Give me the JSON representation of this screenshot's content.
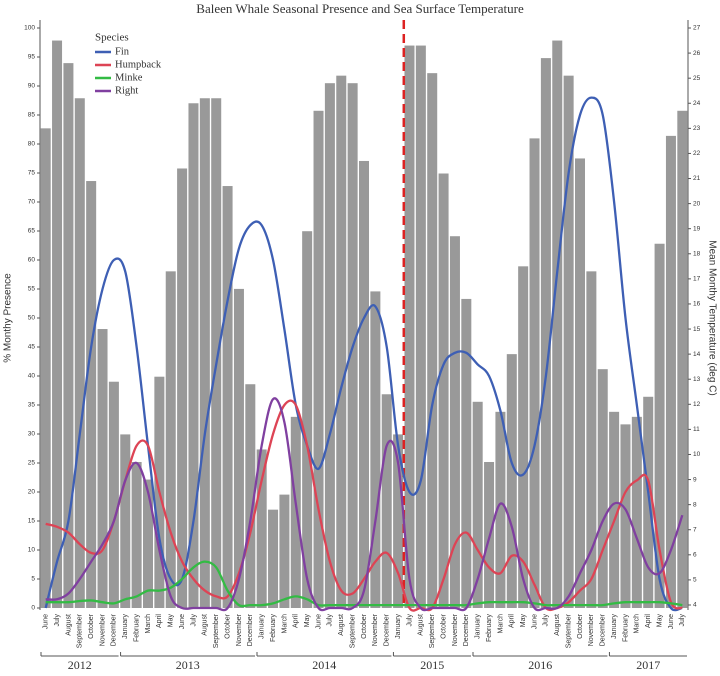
{
  "chart_data": {
    "type": "bar_line",
    "title": "Baleen Whale Seasonal Presence and Sea Surface Temperature",
    "y_label": "% Monthy Presence",
    "y2_label": "Mean Monthy Temperature (deg C)",
    "legend_title": "Species",
    "legend": "top-left",
    "categories": [
      "June",
      "July",
      "August",
      "September",
      "October",
      "November",
      "December",
      "January",
      "February",
      "March",
      "April",
      "May",
      "June",
      "July",
      "August",
      "September",
      "October",
      "November",
      "December",
      "January",
      "February",
      "March",
      "April",
      "May",
      "June",
      "July",
      "August",
      "September",
      "October",
      "November",
      "December",
      "January",
      "July",
      "August",
      "September",
      "October",
      "November",
      "December",
      "January",
      "February",
      "March",
      "April",
      "May",
      "June",
      "July",
      "August",
      "September",
      "October",
      "November",
      "December",
      "January",
      "February",
      "March",
      "April",
      "May",
      "June",
      "July"
    ],
    "year_groups": [
      {
        "label": "2012",
        "count": 7
      },
      {
        "label": "2013",
        "count": 12
      },
      {
        "label": "2014",
        "count": 12
      },
      {
        "label": "2015",
        "count": 7
      },
      {
        "label": "2016",
        "count": 12
      },
      {
        "label": "2017",
        "count": 7
      }
    ],
    "bars": {
      "color": "#999999",
      "axis": "y2",
      "values": [
        23.0,
        26.5,
        25.6,
        24.2,
        20.9,
        15.0,
        12.9,
        10.8,
        9.7,
        9.0,
        13.1,
        17.3,
        21.4,
        24.0,
        24.2,
        24.2,
        20.7,
        16.6,
        12.8,
        10.2,
        7.8,
        8.4,
        11.5,
        18.9,
        23.7,
        24.8,
        25.1,
        24.8,
        21.7,
        16.5,
        12.4,
        10.8,
        26.3,
        26.3,
        25.2,
        21.2,
        18.7,
        16.2,
        12.1,
        9.7,
        11.7,
        14.0,
        17.5,
        22.6,
        25.8,
        26.5,
        25.1,
        21.8,
        17.3,
        13.4,
        11.7,
        11.2,
        11.5,
        12.3,
        18.4,
        22.7,
        23.7
      ]
    },
    "series": [
      {
        "name": "Fin",
        "color": "#3e5fb4",
        "values": [
          0,
          8,
          15,
          30,
          45,
          55,
          60,
          58,
          45,
          28,
          12,
          5,
          5,
          15,
          30,
          42,
          53,
          62,
          66,
          66,
          60,
          48,
          35,
          28,
          24,
          30,
          38,
          45,
          50,
          52,
          45,
          28,
          20,
          22,
          35,
          42,
          44,
          44,
          42,
          40,
          34,
          25,
          23,
          28,
          40,
          58,
          75,
          85,
          88,
          85,
          70,
          50,
          35,
          20,
          5,
          0,
          0
        ]
      },
      {
        "name": "Humpback",
        "color": "#dd4455",
        "values": [
          14.5,
          14,
          13,
          11,
          9.5,
          10,
          15,
          22,
          28,
          28,
          20,
          13,
          8,
          5,
          3,
          2,
          2,
          6,
          13,
          22,
          30,
          35,
          35,
          28,
          17,
          8,
          3,
          2.5,
          5,
          8,
          9.5,
          6,
          0,
          0,
          0,
          5,
          11,
          13,
          10,
          7,
          6,
          9,
          8,
          4,
          0,
          0,
          1,
          3,
          5,
          10,
          15,
          20,
          22,
          22,
          10,
          1,
          0
        ]
      },
      {
        "name": "Minke",
        "color": "#33bb44",
        "values": [
          1,
          1,
          1,
          1.2,
          1.3,
          1,
          0.8,
          1.5,
          2,
          3,
          3,
          3.5,
          5,
          7,
          8,
          7,
          3,
          0.5,
          0.5,
          0.5,
          0.8,
          1.5,
          2,
          1.5,
          0.5,
          0.5,
          0.5,
          0.5,
          0.5,
          0.5,
          0.5,
          0.5,
          0.5,
          0.5,
          0.5,
          0.5,
          0.5,
          0.5,
          0.8,
          1,
          1,
          1,
          1,
          0.8,
          0.5,
          0.5,
          0.5,
          0.5,
          0.5,
          0.5,
          0.8,
          1,
          1,
          1,
          1,
          0.8,
          0.5
        ]
      },
      {
        "name": "Right",
        "color": "#8040a0",
        "values": [
          1.5,
          1.5,
          2.5,
          5,
          8,
          11,
          15,
          22,
          25,
          20,
          10,
          2,
          0,
          0,
          0,
          0,
          0,
          5,
          15,
          28,
          36,
          32,
          18,
          5,
          0,
          0,
          0,
          0,
          3,
          15,
          28,
          25,
          5,
          0,
          0,
          0,
          0,
          0,
          5,
          12,
          18,
          14,
          5,
          0,
          0,
          0,
          2,
          6,
          10,
          15,
          18,
          17,
          12,
          7,
          6,
          10,
          16
        ]
      }
    ],
    "ylim": [
      0,
      100
    ],
    "yticks": [
      0,
      5,
      10,
      15,
      20,
      25,
      30,
      35,
      40,
      45,
      50,
      55,
      60,
      65,
      70,
      75,
      80,
      85,
      90,
      95,
      100
    ],
    "y2lim": [
      3.88,
      27
    ],
    "y2ticks": [
      4,
      5,
      6,
      7,
      8,
      9,
      10,
      11,
      12,
      13,
      14,
      15,
      16,
      17,
      18,
      19,
      20,
      21,
      22,
      23,
      24,
      25,
      26,
      27
    ]
  }
}
